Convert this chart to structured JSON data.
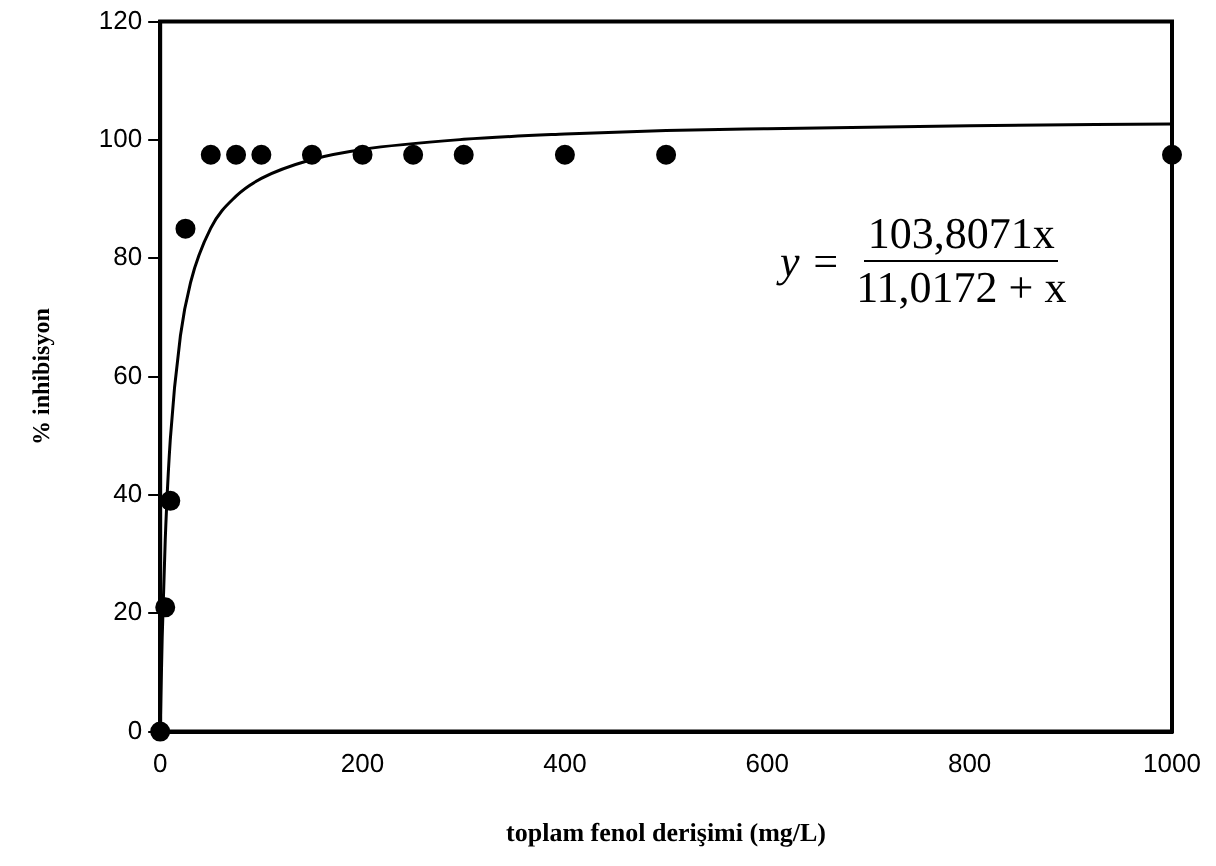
{
  "chart_data": {
    "type": "scatter",
    "xlabel": "toplam fenol derişimi (mg/L)",
    "ylabel": "% inhibisyon",
    "xlim": [
      0,
      1000
    ],
    "xticks": [
      0,
      200,
      400,
      600,
      800,
      1000
    ],
    "ylim": [
      0,
      120
    ],
    "yticks": [
      0,
      20,
      40,
      60,
      80,
      100,
      120
    ],
    "grid": false,
    "legend": false,
    "annotations": [
      "y =",
      "103,8071x",
      "11,0172 + x"
    ],
    "series": [
      {
        "color": "#000000",
        "marker": "circle",
        "x": [
          0,
          5,
          10,
          25,
          50,
          75,
          100,
          150,
          200,
          250,
          300,
          400,
          500,
          1000
        ],
        "values": [
          0,
          21,
          39,
          85,
          97.5,
          97.5,
          97.5,
          97.5,
          97.5,
          97.5,
          97.5,
          97.5,
          97.5,
          97.5
        ]
      },
      {
        "type": "line",
        "color": "#000000",
        "marker": "none",
        "line_style": "solid",
        "x": [
          0,
          2,
          5,
          10,
          20,
          30,
          50,
          75,
          100,
          150,
          200,
          300,
          400,
          500,
          600,
          800,
          1000
        ],
        "values": [
          0,
          16,
          32.4,
          49.4,
          66.9,
          75.9,
          85.1,
          90.5,
          93.5,
          96.7,
          98.4,
          100.1,
          101,
          101.6,
          101.9,
          102.4,
          102.7
        ]
      }
    ]
  }
}
